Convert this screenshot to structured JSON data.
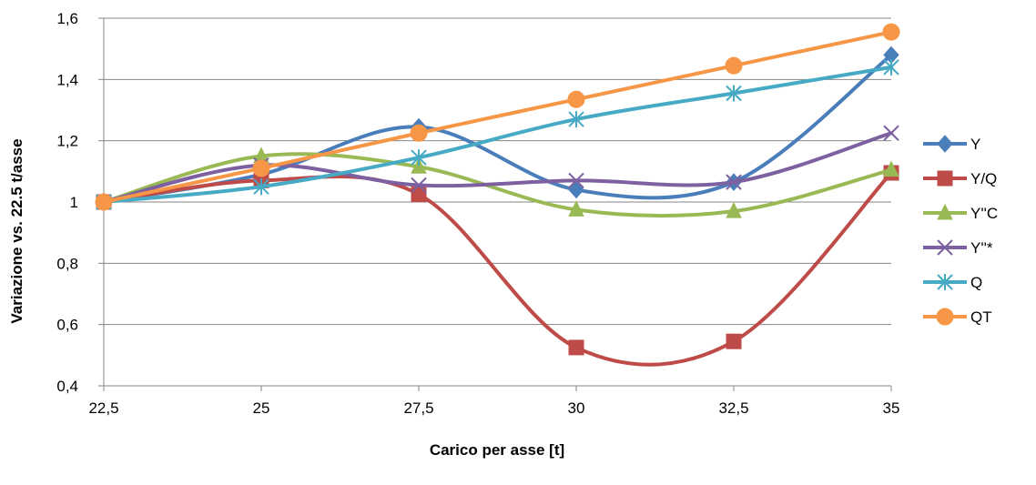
{
  "chart_data": {
    "type": "line",
    "smooth": true,
    "title": "",
    "xlabel": "Carico per asse [t]",
    "ylabel": "Variazione vs. 22.5 t/asse",
    "x": [
      22.5,
      25,
      27.5,
      30,
      32.5,
      35
    ],
    "x_tick_labels": [
      "22,5",
      "25",
      "27,5",
      "30",
      "32,5",
      "35"
    ],
    "ylim": [
      0.4,
      1.6
    ],
    "y_ticks": [
      0.4,
      0.6,
      0.8,
      1.0,
      1.2,
      1.4,
      1.6
    ],
    "y_tick_labels": [
      "0,4",
      "0,6",
      "0,8",
      "1",
      "1,2",
      "1,4",
      "1,6"
    ],
    "grid": "horizontal",
    "legend_position": "right",
    "series": [
      {
        "name": "Y",
        "color": "#4a7ebb",
        "marker": "diamond",
        "values": [
          1.0,
          1.09,
          1.245,
          1.04,
          1.065,
          1.48
        ]
      },
      {
        "name": "Y/Q",
        "color": "#be4b48",
        "marker": "square",
        "values": [
          1.0,
          1.07,
          1.025,
          0.525,
          0.545,
          1.095
        ]
      },
      {
        "name": "Y''C",
        "color": "#98b954",
        "marker": "triangle",
        "values": [
          1.0,
          1.15,
          1.115,
          0.975,
          0.97,
          1.105
        ]
      },
      {
        "name": "Y''*",
        "color": "#7d60a0",
        "marker": "x",
        "values": [
          1.0,
          1.12,
          1.055,
          1.07,
          1.065,
          1.225
        ]
      },
      {
        "name": "Q",
        "color": "#46aac5",
        "marker": "star",
        "values": [
          1.0,
          1.05,
          1.145,
          1.27,
          1.355,
          1.44
        ]
      },
      {
        "name": "QT",
        "color": "#f79646",
        "marker": "circle",
        "values": [
          1.0,
          1.11,
          1.225,
          1.335,
          1.445,
          1.555
        ]
      }
    ]
  }
}
